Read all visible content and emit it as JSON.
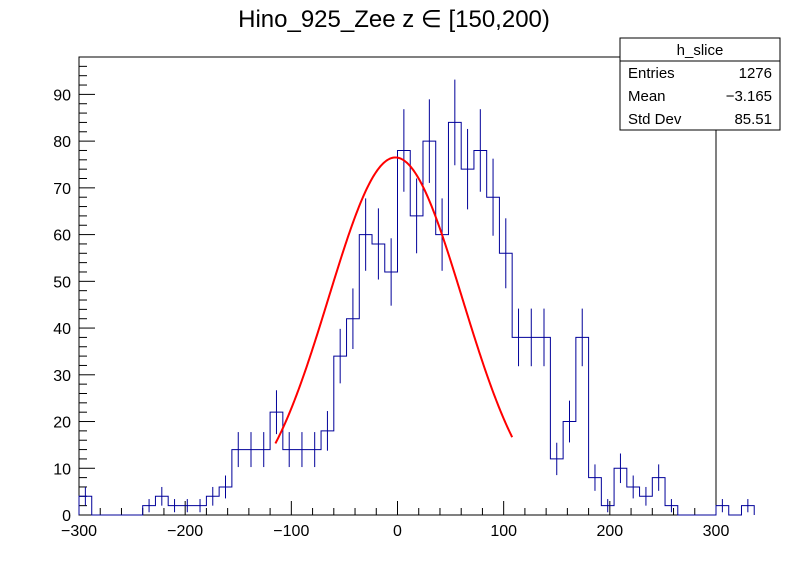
{
  "chart_data": {
    "type": "histogram",
    "title": "Hino_925_Zee z  ∈ [150,200)",
    "xlabel": "",
    "ylabel": "",
    "xlim": [
      -300,
      300
    ],
    "ylim": [
      0,
      98
    ],
    "x_ticks": [
      -300,
      -200,
      -100,
      0,
      100,
      200,
      300
    ],
    "y_ticks": [
      0,
      10,
      20,
      30,
      40,
      50,
      60,
      70,
      80,
      90
    ],
    "bin_width": 12,
    "bin_start": -300,
    "counts": [
      4,
      0,
      0,
      0,
      0,
      2,
      4,
      2,
      2,
      2,
      4,
      6,
      14,
      14,
      14,
      22,
      14,
      14,
      14,
      18,
      34,
      42,
      60,
      58,
      52,
      78,
      64,
      80,
      60,
      84,
      74,
      78,
      68,
      56,
      38,
      38,
      38,
      12,
      20,
      38,
      8,
      2,
      10,
      6,
      4,
      8,
      2,
      0,
      0,
      0,
      2,
      0,
      2
    ],
    "fit": {
      "function": "gaus",
      "constant": 76.5,
      "mean": -2,
      "sigma": 63,
      "range": [
        -115,
        108
      ]
    },
    "colors": {
      "histogram": "#000099",
      "fit": "#ff0000",
      "frame": "#000000"
    },
    "stats_box": {
      "name": "h_slice",
      "rows": [
        {
          "label": "Entries",
          "value": "1276"
        },
        {
          "label": "Mean",
          "value": "−3.165"
        },
        {
          "label": "Std Dev",
          "value": "85.51"
        }
      ]
    }
  }
}
